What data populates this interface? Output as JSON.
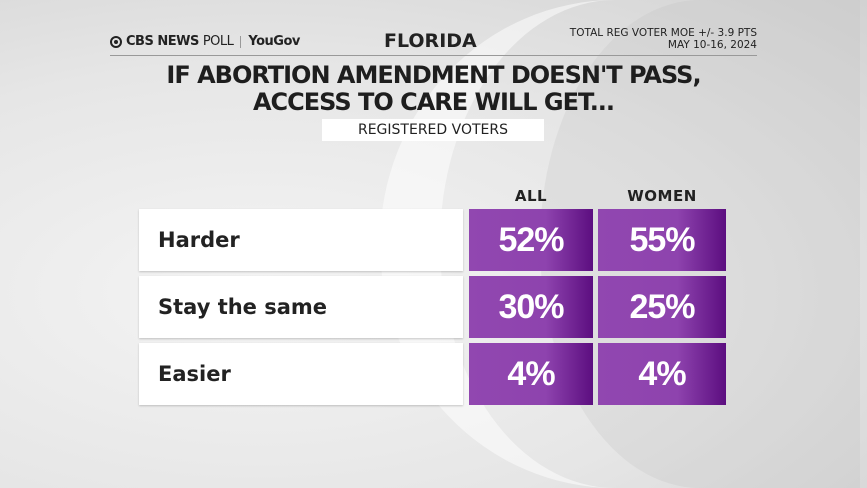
{
  "header": {
    "brand": "CBS NEWS",
    "brand_suffix": "POLL",
    "partner": "YouGov",
    "state": "FLORIDA",
    "moe": "TOTAL REG VOTER MOE +/- 3.9 PTS",
    "dates": "MAY 10-16, 2024"
  },
  "chart_data": {
    "type": "table",
    "title_line1": "IF ABORTION AMENDMENT DOESN'T PASS,",
    "title_line2": "ACCESS TO CARE WILL GET...",
    "subtitle": "REGISTERED VOTERS",
    "columns": [
      "ALL",
      "WOMEN"
    ],
    "rows": [
      {
        "label": "Harder",
        "values": [
          "52%",
          "55%"
        ]
      },
      {
        "label": "Stay the same",
        "values": [
          "30%",
          "25%"
        ]
      },
      {
        "label": "Easier",
        "values": [
          "4%",
          "4%"
        ]
      }
    ],
    "cell_color": "#8e43ae"
  }
}
